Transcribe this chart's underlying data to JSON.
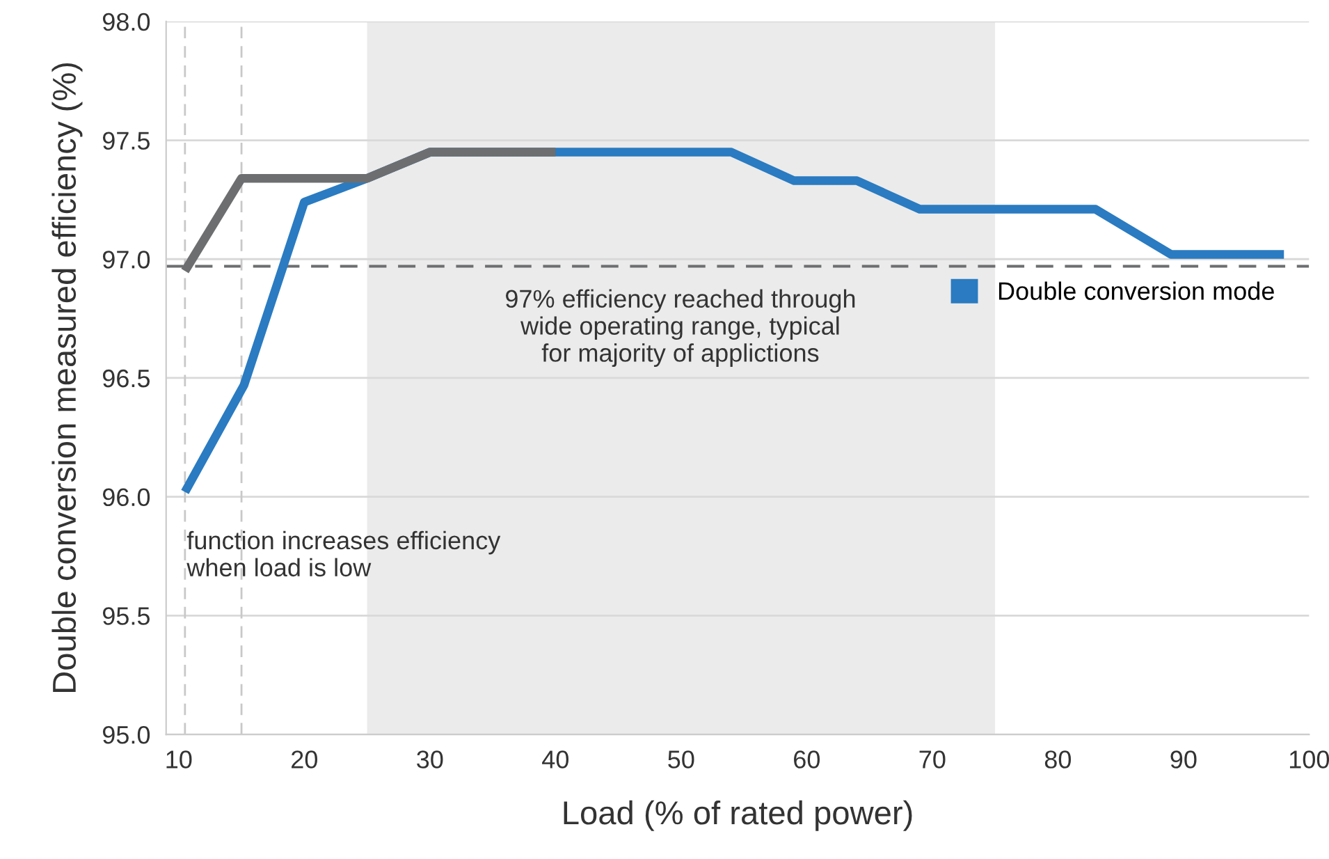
{
  "chart_data": {
    "type": "line",
    "xlabel": "Load (% of rated power)",
    "ylabel": "Double conversion measured efficiency (%)",
    "xlim": [
      9,
      100
    ],
    "xticks": [
      10,
      20,
      30,
      40,
      50,
      60,
      70,
      80,
      90,
      100
    ],
    "ylim": [
      95.0,
      98.0
    ],
    "yticks": [
      {
        "value": 95.0,
        "label": "95.0"
      },
      {
        "value": 95.5,
        "label": "95.5"
      },
      {
        "value": 96.0,
        "label": "96.0"
      },
      {
        "value": 96.5,
        "label": "96.5"
      },
      {
        "value": 97.0,
        "label": "97.0"
      },
      {
        "value": 97.5,
        "label": "97.5"
      },
      {
        "value": 98.0,
        "label": "98.0"
      }
    ],
    "grid": "y",
    "legend": "right",
    "marker": "none",
    "line_style": "solid",
    "series": [
      {
        "name": "Double conversion mode",
        "color": "#2a7bc1",
        "x": [
          10.5,
          15.2,
          20,
          25,
          30,
          54,
          59,
          64,
          69,
          83,
          89,
          98
        ],
        "values": [
          96.02,
          96.47,
          97.24,
          97.34,
          97.45,
          97.45,
          97.33,
          97.33,
          97.21,
          97.21,
          97.02,
          97.02
        ]
      },
      {
        "color": "#6d6e70",
        "x": [
          10.5,
          15,
          25,
          30,
          40
        ],
        "values": [
          96.95,
          97.34,
          97.34,
          97.45,
          97.45
        ]
      }
    ],
    "ref_lines": [
      {
        "axis": "y",
        "value": 96.97,
        "color": "#6d6e70",
        "line_style": "dashed"
      },
      {
        "axis": "x",
        "value": 10.5,
        "color": "#c8c8c8",
        "line_style": "dashed"
      },
      {
        "axis": "x",
        "value": 15,
        "color": "#c8c8c8",
        "line_style": "dashed"
      }
    ],
    "bands": [
      {
        "axis": "x",
        "from": 25,
        "to": 75,
        "color": "#ebebeb"
      }
    ],
    "annotations": [
      "97% efficiency reached through\nwide operating range, typical\nfor majority of applictions",
      "function increases efficiency\nwhen load is low"
    ]
  }
}
